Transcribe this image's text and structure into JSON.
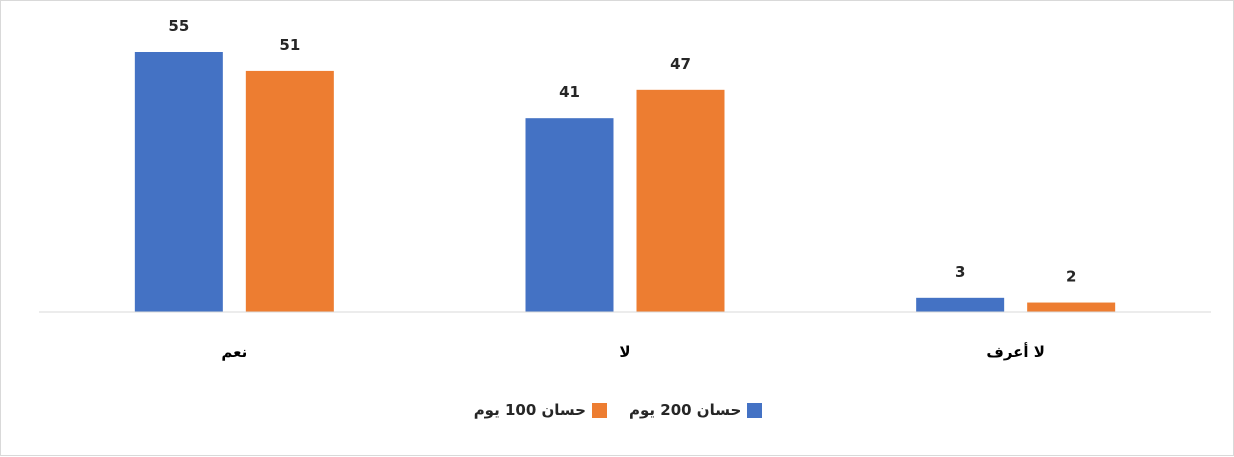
{
  "chart_data": {
    "type": "bar",
    "categories": [
      "نعم",
      "لا",
      "لا أعرف"
    ],
    "series": [
      {
        "name": "حسان 200 يوم",
        "values": [
          55,
          41,
          3
        ],
        "color": "#4472C4"
      },
      {
        "name": "حسان 100 يوم",
        "values": [
          51,
          47,
          2
        ],
        "color": "#ED7D31"
      }
    ],
    "ylim": [
      0,
      55
    ],
    "grid": false,
    "legend": "bottom",
    "axis_color": "#d9d9d9"
  }
}
